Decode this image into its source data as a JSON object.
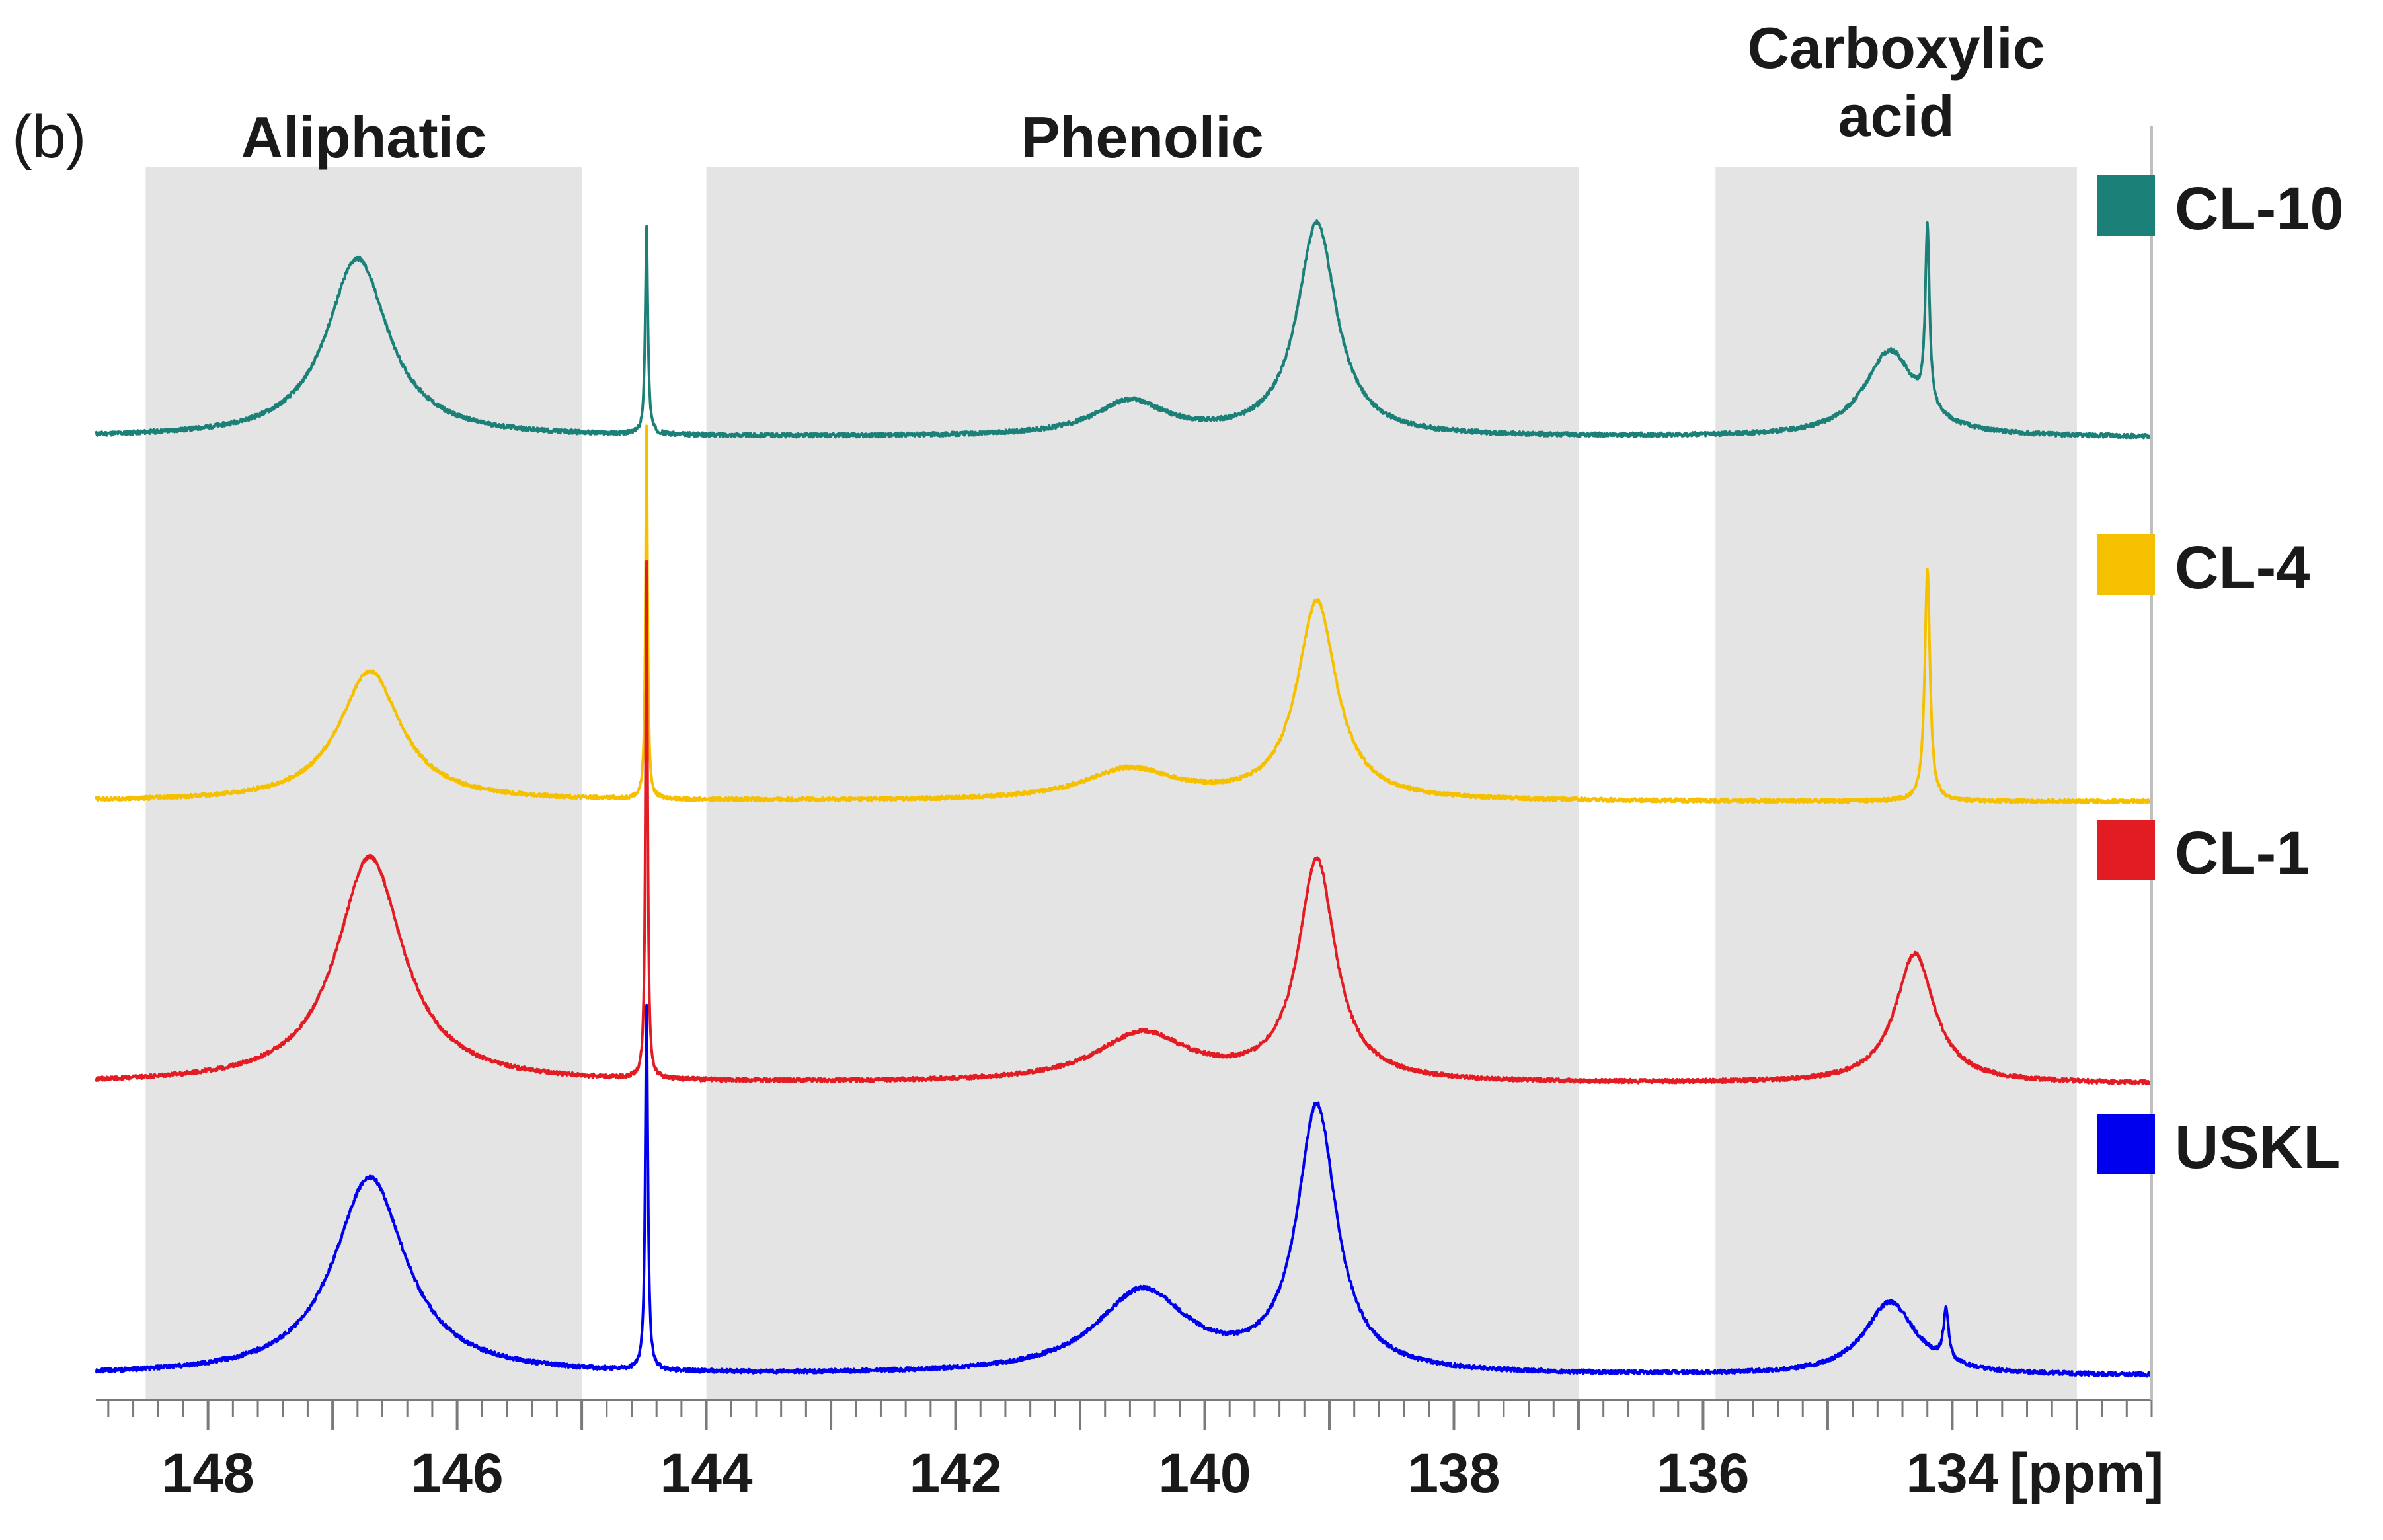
{
  "chart_data": {
    "type": "line",
    "panel_label": "(b)",
    "xlabel": "[ppm]",
    "xlim": [
      148.9,
      132.4
    ],
    "x_reversed": true,
    "xticks": [
      148,
      146,
      144,
      142,
      140,
      138,
      136,
      134
    ],
    "xtick_labels": [
      "148",
      "146",
      "144",
      "142",
      "140",
      "138",
      "136",
      "134"
    ],
    "regions": [
      {
        "label": "Aliphatic",
        "from": 148.5,
        "to": 145.0
      },
      {
        "label": "Phenolic",
        "from": 144.0,
        "to": 137.0
      },
      {
        "label_lines": [
          "Carboxylic",
          "acid"
        ],
        "from": 135.9,
        "to": 133.0
      }
    ],
    "series": [
      {
        "name": "CL-10",
        "color": "#1b8178",
        "baseline": 0,
        "peaks": [
          {
            "ppm": 146.8,
            "height": 0.52,
            "width": 0.6
          },
          {
            "ppm": 144.48,
            "height": 0.6,
            "width": 0.025
          },
          {
            "ppm": 140.6,
            "height": 0.1,
            "width": 0.7
          },
          {
            "ppm": 139.1,
            "height": 0.62,
            "width": 0.38
          },
          {
            "ppm": 134.5,
            "height": 0.25,
            "width": 0.5
          },
          {
            "ppm": 134.2,
            "height": 0.52,
            "width": 0.04
          }
        ]
      },
      {
        "name": "CL-4",
        "color": "#f5c000",
        "baseline": 0,
        "peaks": [
          {
            "ppm": 146.7,
            "height": 0.42,
            "width": 0.6
          },
          {
            "ppm": 144.48,
            "height": 1.2,
            "width": 0.02
          },
          {
            "ppm": 140.6,
            "height": 0.1,
            "width": 0.9
          },
          {
            "ppm": 139.1,
            "height": 0.64,
            "width": 0.38
          },
          {
            "ppm": 134.2,
            "height": 0.75,
            "width": 0.05
          }
        ]
      },
      {
        "name": "CL-1",
        "color": "#e31b23",
        "baseline": 0,
        "peaks": [
          {
            "ppm": 146.7,
            "height": 0.7,
            "width": 0.65
          },
          {
            "ppm": 144.48,
            "height": 1.6,
            "width": 0.02
          },
          {
            "ppm": 140.5,
            "height": 0.15,
            "width": 0.9
          },
          {
            "ppm": 139.1,
            "height": 0.68,
            "width": 0.36
          },
          {
            "ppm": 134.3,
            "height": 0.4,
            "width": 0.38
          }
        ]
      },
      {
        "name": "USKL",
        "color": "#0000ee",
        "baseline": 0,
        "peaks": [
          {
            "ppm": 146.7,
            "height": 0.6,
            "width": 0.7
          },
          {
            "ppm": 144.48,
            "height": 1.1,
            "width": 0.025
          },
          {
            "ppm": 140.5,
            "height": 0.25,
            "width": 0.9
          },
          {
            "ppm": 139.1,
            "height": 0.8,
            "width": 0.38
          },
          {
            "ppm": 134.5,
            "height": 0.22,
            "width": 0.5
          },
          {
            "ppm": 134.05,
            "height": 0.15,
            "width": 0.05
          }
        ]
      }
    ],
    "legend": [
      "CL-10",
      "CL-4",
      "CL-1",
      "USKL"
    ],
    "legend_position": "right"
  },
  "colors": {
    "region_fill": "#e4e4e4",
    "axis": "#7a7a7a",
    "text": "#1a1a1a"
  }
}
